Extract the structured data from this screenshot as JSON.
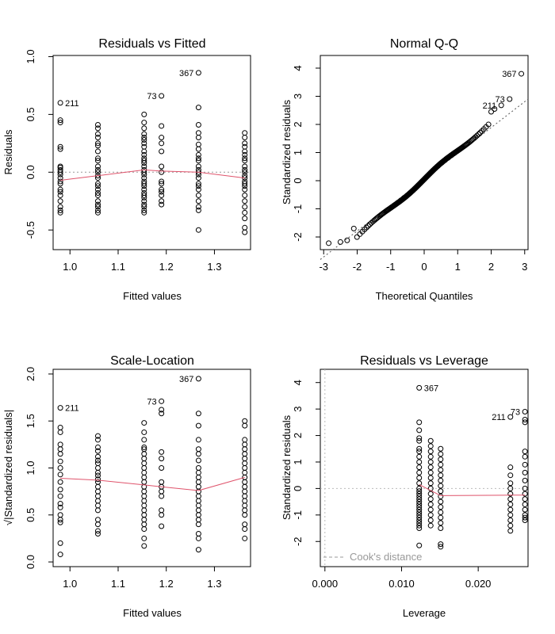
{
  "chart_data": [
    {
      "type": "scatter",
      "title": "Residuals vs Fitted",
      "xlabel": "Fitted values",
      "ylabel": "Residuals",
      "xlim": [
        0.965,
        1.375
      ],
      "ylim": [
        -0.67,
        1.01
      ],
      "xticks": [
        "1.0",
        "1.1",
        "1.2",
        "1.3"
      ],
      "xtick_values": [
        1.0,
        1.1,
        1.2,
        1.3
      ],
      "yticks": [
        "-0.5",
        "0.0",
        "0.5",
        "1.0"
      ],
      "ytick_values": [
        -0.5,
        0.0,
        0.5,
        1.0
      ],
      "reference_line": {
        "y": 0,
        "style": "dotted",
        "color": "#999999"
      },
      "x_levels": [
        0.98,
        1.058,
        1.154,
        1.19,
        1.267,
        1.363
      ],
      "points_by_level": [
        [
          0.6,
          0.45,
          0.43,
          0.22,
          0.2,
          0.05,
          0.04,
          0.02,
          0.0,
          -0.02,
          -0.05,
          -0.08,
          -0.1,
          -0.15,
          -0.17,
          -0.2,
          -0.25,
          -0.3,
          -0.33,
          -0.35
        ],
        [
          0.41,
          0.38,
          0.33,
          0.3,
          0.25,
          0.23,
          0.18,
          0.12,
          0.1,
          0.05,
          0.02,
          0.0,
          -0.03,
          -0.05,
          -0.1,
          -0.12,
          -0.15,
          -0.18,
          -0.2,
          -0.25,
          -0.28,
          -0.3,
          -0.33,
          -0.35
        ],
        [
          0.5,
          0.43,
          0.38,
          0.33,
          0.3,
          0.28,
          0.25,
          0.22,
          0.18,
          0.15,
          0.12,
          0.1,
          0.08,
          0.05,
          0.02,
          0.0,
          -0.02,
          -0.05,
          -0.08,
          -0.1,
          -0.12,
          -0.15,
          -0.18,
          -0.2,
          -0.22,
          -0.25,
          -0.28,
          -0.3,
          -0.33,
          -0.35
        ],
        [
          0.66,
          0.4,
          0.3,
          0.25,
          0.18,
          0.05,
          0.0,
          -0.08,
          -0.1,
          -0.15,
          -0.17,
          -0.2,
          -0.25,
          -0.28
        ],
        [
          0.86,
          0.56,
          0.41,
          0.34,
          0.3,
          0.24,
          0.2,
          0.15,
          0.12,
          0.1,
          0.05,
          0.02,
          0.0,
          -0.02,
          -0.05,
          -0.1,
          -0.12,
          -0.15,
          -0.2,
          -0.25,
          -0.3,
          -0.33,
          -0.5
        ],
        [
          0.34,
          0.3,
          0.25,
          0.22,
          0.18,
          0.15,
          0.12,
          0.1,
          0.05,
          0.02,
          0.0,
          -0.03,
          -0.05,
          -0.08,
          -0.1,
          -0.12,
          -0.15,
          -0.2,
          -0.25,
          -0.3,
          -0.35,
          -0.4,
          -0.48,
          -0.52
        ]
      ],
      "smooth_line": {
        "x": [
          0.98,
          1.058,
          1.154,
          1.19,
          1.267,
          1.363
        ],
        "y": [
          -0.07,
          -0.03,
          0.02,
          0.01,
          0.0,
          -0.05
        ],
        "color": "#df536b"
      },
      "annotations": [
        {
          "label": "211",
          "x": 0.98,
          "y": 0.6,
          "side": "right"
        },
        {
          "label": "73",
          "x": 1.19,
          "y": 0.66,
          "side": "left"
        },
        {
          "label": "367",
          "x": 1.267,
          "y": 0.86,
          "side": "left"
        }
      ]
    },
    {
      "type": "scatter",
      "title": "Normal Q-Q",
      "xlabel": "Theoretical Quantiles",
      "ylabel": "Standardized residuals",
      "xlim": [
        -3.1,
        3.1
      ],
      "ylim": [
        -2.45,
        4.45
      ],
      "xticks": [
        "-3",
        "-2",
        "-1",
        "0",
        "1",
        "2",
        "3"
      ],
      "xtick_values": [
        -3,
        -2,
        -1,
        0,
        1,
        2,
        3
      ],
      "yticks": [
        "-2",
        "-1",
        "0",
        "1",
        "2",
        "3",
        "4"
      ],
      "ytick_values": [
        -2,
        -1,
        0,
        1,
        2,
        3,
        4
      ],
      "qq_line": {
        "x": [
          -3.1,
          3.1
        ],
        "y": [
          -2.8,
          2.9
        ],
        "style": "dotted",
        "color": "#555555"
      },
      "n_points": 200,
      "points": [
        [
          -2.85,
          -2.22
        ],
        [
          -2.5,
          -2.18
        ],
        [
          -2.3,
          -2.12
        ],
        [
          -2.1,
          -1.7
        ],
        [
          2.9,
          3.8
        ],
        [
          2.55,
          2.9
        ],
        [
          2.3,
          2.68
        ],
        [
          2.1,
          2.55
        ],
        [
          2.0,
          2.45
        ]
      ],
      "annotations": [
        {
          "label": "367",
          "x": 2.9,
          "y": 3.8,
          "side": "left"
        },
        {
          "label": "73",
          "x": 2.55,
          "y": 2.9,
          "side": "left"
        },
        {
          "label": "211",
          "x": 2.3,
          "y": 2.68,
          "side": "left"
        }
      ]
    },
    {
      "type": "scatter",
      "title": "Scale-Location",
      "xlabel": "Fitted values",
      "ylabel": "√|Standardized residuals|",
      "xlim": [
        0.965,
        1.375
      ],
      "ylim": [
        -0.05,
        2.05
      ],
      "xticks": [
        "1.0",
        "1.1",
        "1.2",
        "1.3"
      ],
      "xtick_values": [
        1.0,
        1.1,
        1.2,
        1.3
      ],
      "yticks": [
        "0.0",
        "0.5",
        "1.0",
        "1.5",
        "2.0"
      ],
      "ytick_values": [
        0.0,
        0.5,
        1.0,
        1.5,
        2.0
      ],
      "x_levels": [
        0.98,
        1.058,
        1.154,
        1.19,
        1.267,
        1.363
      ],
      "points_by_level": [
        [
          1.64,
          1.43,
          1.38,
          1.25,
          1.2,
          1.15,
          1.07,
          1.0,
          0.93,
          0.85,
          0.77,
          0.7,
          0.62,
          0.58,
          0.5,
          0.45,
          0.42,
          0.2,
          0.08
        ],
        [
          1.34,
          1.3,
          1.22,
          1.18,
          1.12,
          1.08,
          1.05,
          1.0,
          0.95,
          0.92,
          0.88,
          0.85,
          0.8,
          0.75,
          0.7,
          0.65,
          0.6,
          0.55,
          0.45,
          0.4,
          0.33,
          0.3
        ],
        [
          1.48,
          1.38,
          1.3,
          1.22,
          1.2,
          1.15,
          1.1,
          1.05,
          1.0,
          0.95,
          0.9,
          0.85,
          0.8,
          0.75,
          0.7,
          0.65,
          0.6,
          0.55,
          0.5,
          0.45,
          0.4,
          0.35,
          0.25,
          0.17
        ],
        [
          1.71,
          1.62,
          1.58,
          1.17,
          1.1,
          1.0,
          0.85,
          0.8,
          0.75,
          0.7,
          0.55,
          0.5,
          0.38
        ],
        [
          1.95,
          1.58,
          1.45,
          1.3,
          1.2,
          1.15,
          1.08,
          1.0,
          0.95,
          0.9,
          0.85,
          0.8,
          0.75,
          0.7,
          0.65,
          0.6,
          0.55,
          0.5,
          0.45,
          0.4,
          0.3,
          0.25,
          0.13
        ],
        [
          1.5,
          1.45,
          1.3,
          1.25,
          1.2,
          1.15,
          1.1,
          1.05,
          1.0,
          0.95,
          0.9,
          0.85,
          0.8,
          0.75,
          0.7,
          0.65,
          0.6,
          0.55,
          0.5,
          0.4,
          0.35,
          0.25
        ]
      ],
      "smooth_line": {
        "x": [
          0.98,
          1.058,
          1.154,
          1.19,
          1.267,
          1.363
        ],
        "y": [
          0.89,
          0.87,
          0.82,
          0.8,
          0.76,
          0.9
        ],
        "color": "#df536b"
      },
      "annotations": [
        {
          "label": "211",
          "x": 0.98,
          "y": 1.64,
          "side": "right"
        },
        {
          "label": "73",
          "x": 1.19,
          "y": 1.71,
          "side": "left"
        },
        {
          "label": "367",
          "x": 1.267,
          "y": 1.95,
          "side": "left"
        }
      ]
    },
    {
      "type": "scatter",
      "title": "Residuals vs Leverage",
      "xlabel": "Leverage",
      "ylabel": "Standardized residuals",
      "xlim": [
        -0.0006,
        0.0265
      ],
      "ylim": [
        -2.95,
        4.5
      ],
      "xticks": [
        "0.000",
        "0.010",
        "0.020"
      ],
      "xtick_values": [
        0.0,
        0.01,
        0.02
      ],
      "yticks": [
        "-2",
        "-1",
        "0",
        "1",
        "2",
        "3",
        "4"
      ],
      "ytick_values": [
        -2,
        -1,
        0,
        1,
        2,
        3,
        4
      ],
      "reference_lines": [
        {
          "y": 0,
          "style": "dotted",
          "color": "#bbbbbb"
        },
        {
          "x": 0,
          "style": "dotted",
          "color": "#bbbbbb"
        }
      ],
      "x_levels": [
        0.0123,
        0.0138,
        0.0151,
        0.0242,
        0.0261
      ],
      "points_by_level": [
        [
          3.8,
          2.5,
          2.2,
          1.9,
          1.8,
          1.5,
          1.4,
          1.2,
          1.0,
          0.8,
          0.6,
          0.4,
          0.2,
          0.0,
          -0.1,
          -0.2,
          -0.3,
          -0.4,
          -0.5,
          -0.6,
          -0.7,
          -0.8,
          -0.9,
          -1.0,
          -1.1,
          -1.2,
          -1.3,
          -1.4,
          -1.5,
          -2.15
        ],
        [
          1.8,
          1.6,
          1.4,
          1.2,
          1.0,
          0.8,
          0.6,
          0.4,
          0.2,
          0.0,
          -0.2,
          -0.4,
          -0.6,
          -0.8,
          -1.0,
          -1.2,
          -1.4
        ],
        [
          1.5,
          1.3,
          1.1,
          0.9,
          0.7,
          0.5,
          0.3,
          0.1,
          -0.1,
          -0.3,
          -0.5,
          -0.7,
          -0.9,
          -1.1,
          -1.3,
          -1.5,
          -2.1,
          -2.2
        ],
        [
          2.7,
          0.8,
          0.5,
          0.2,
          0.0,
          -0.2,
          -0.4,
          -0.6,
          -0.8,
          -1.0,
          -1.2,
          -1.4,
          -1.6
        ],
        [
          2.9,
          2.6,
          2.5,
          1.4,
          1.2,
          0.9,
          0.6,
          0.3,
          0.0,
          -0.2,
          -0.4,
          -0.6,
          -0.8,
          -1.0,
          -1.1,
          -1.2
        ]
      ],
      "smooth_line": {
        "x": [
          0.0123,
          0.0151,
          0.0242,
          0.0261
        ],
        "y": [
          0.15,
          -0.27,
          -0.25,
          -0.25
        ],
        "color": "#df536b"
      },
      "annotations": [
        {
          "label": "367",
          "x": 0.0123,
          "y": 3.8,
          "side": "right"
        },
        {
          "label": "73",
          "x": 0.0261,
          "y": 2.9,
          "side": "left"
        },
        {
          "label": "211",
          "x": 0.0242,
          "y": 2.7,
          "side": "left"
        }
      ],
      "legend": {
        "position": "bottom-left",
        "entries": [
          {
            "label": "Cook's distance",
            "style": "dashed",
            "color": "#999999"
          }
        ]
      }
    }
  ]
}
